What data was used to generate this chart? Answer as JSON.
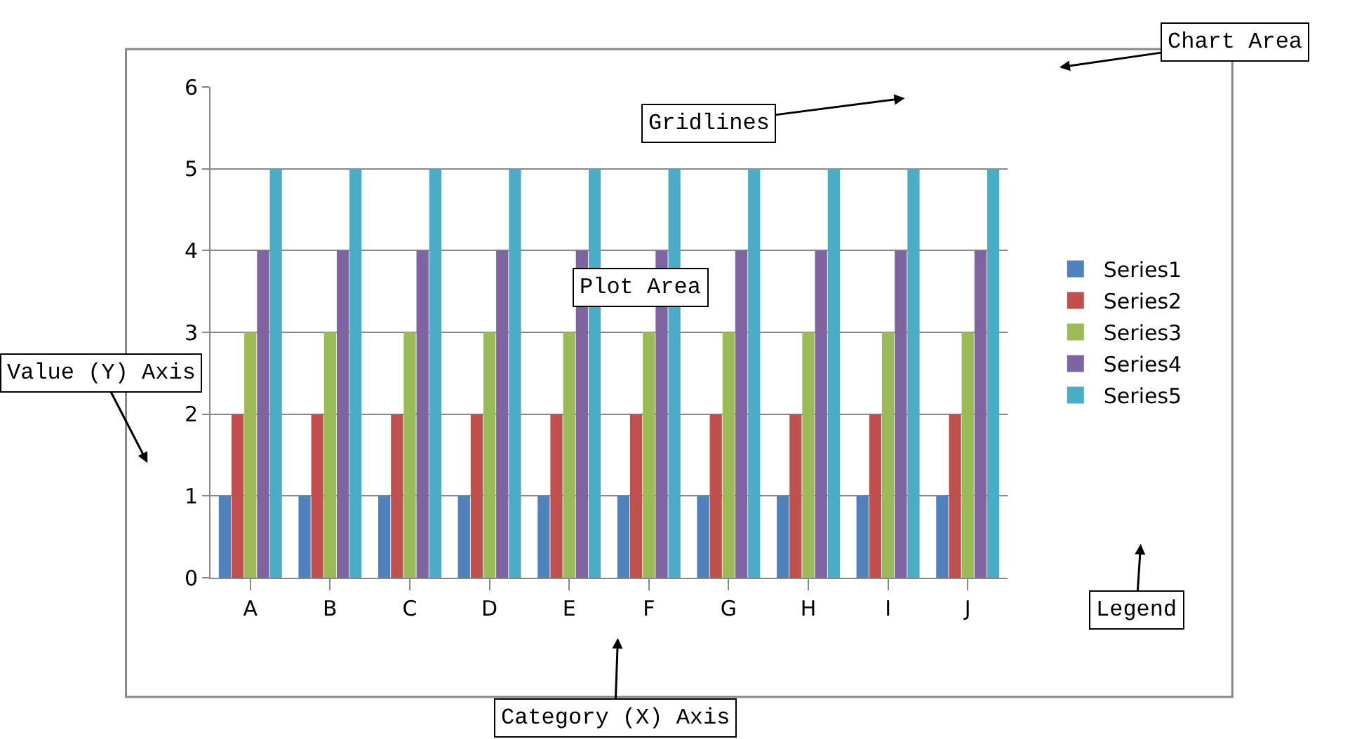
{
  "chart_data": {
    "type": "bar",
    "categories": [
      "A",
      "B",
      "C",
      "D",
      "E",
      "F",
      "G",
      "H",
      "I",
      "J"
    ],
    "series": [
      {
        "name": "Series1",
        "color": "#4f81bd",
        "values": [
          1,
          1,
          1,
          1,
          1,
          1,
          1,
          1,
          1,
          1
        ]
      },
      {
        "name": "Series2",
        "color": "#c0504d",
        "values": [
          2,
          2,
          2,
          2,
          2,
          2,
          2,
          2,
          2,
          2
        ]
      },
      {
        "name": "Series3",
        "color": "#9bbb59",
        "values": [
          3,
          3,
          3,
          3,
          3,
          3,
          3,
          3,
          3,
          3
        ]
      },
      {
        "name": "Series4",
        "color": "#8064a2",
        "values": [
          4,
          4,
          4,
          4,
          4,
          4,
          4,
          4,
          4,
          4
        ]
      },
      {
        "name": "Series5",
        "color": "#4bacc6",
        "values": [
          5,
          5,
          5,
          5,
          5,
          5,
          5,
          5,
          5,
          5
        ]
      }
    ],
    "ylim": [
      0,
      6
    ],
    "yticks": [
      0,
      1,
      2,
      3,
      4,
      5,
      6
    ],
    "grid": "y",
    "legend": "right",
    "annotations": [
      "Chart Area",
      "Gridlines",
      "Plot Area",
      "Value (Y) Axis",
      "Category (X) Axis",
      "Legend"
    ]
  }
}
